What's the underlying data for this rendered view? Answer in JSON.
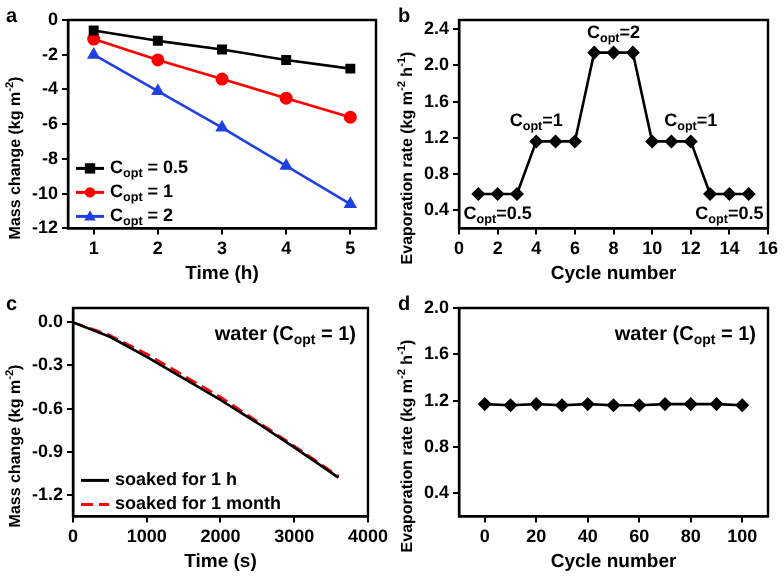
{
  "chart_data": [
    {
      "type": "line",
      "title": "a",
      "xlabel": "Time (h)",
      "ylabel": "Mass change (kg m$^{-2}$)",
      "x": [
        1,
        2,
        3,
        4,
        5
      ],
      "xlim": [
        0.6,
        5.4
      ],
      "xticks": [
        1,
        2,
        3,
        4,
        5
      ],
      "ylim": [
        -12,
        0
      ],
      "yticks": [
        -12,
        -10,
        -8,
        -6,
        -4,
        -2,
        0
      ],
      "grid": false,
      "legend": "bottom left",
      "series": [
        {
          "name": "C$_{opt}$ = 0.5",
          "color": "#000000",
          "marker": "square",
          "values": [
            -0.6,
            -1.2,
            -1.7,
            -2.3,
            -2.8
          ]
        },
        {
          "name": "C$_{opt}$ = 1",
          "color": "#ff0000",
          "marker": "circle",
          "values": [
            -1.1,
            -2.3,
            -3.4,
            -4.5,
            -5.6
          ]
        },
        {
          "name": "C$_{opt}$ = 2",
          "color": "#2040e0",
          "marker": "triangle",
          "values": [
            -2.0,
            -4.1,
            -6.2,
            -8.4,
            -10.6
          ]
        }
      ]
    },
    {
      "type": "line",
      "title": "b",
      "xlabel": "Cycle number",
      "ylabel": "Evaporation rate (kg m$^{-2}$ h$^{-1}$)",
      "x": [
        1,
        2,
        3,
        4,
        5,
        6,
        7,
        8,
        9,
        10,
        11,
        12,
        13,
        14,
        15
      ],
      "xlim": [
        0,
        16
      ],
      "xticks": [
        0,
        2,
        4,
        6,
        8,
        10,
        12,
        14,
        16
      ],
      "ylim": [
        0.2,
        2.5
      ],
      "yticks": [
        0.4,
        0.8,
        1.2,
        1.6,
        {
          "value": 2,
          "label": "2.0"
        },
        2.4
      ],
      "grid": false,
      "marker": "diamond",
      "color": "#000000",
      "values": [
        0.58,
        0.58,
        0.58,
        1.16,
        1.16,
        1.16,
        2.14,
        2.14,
        2.14,
        1.16,
        1.16,
        1.16,
        0.58,
        0.58,
        0.58
      ],
      "annotations": [
        {
          "text": "C$_{opt}$=0.5",
          "x": 2,
          "y": 0.58
        },
        {
          "text": "C$_{opt}$=1",
          "x": 4,
          "y": 1.16
        },
        {
          "text": "C$_{opt}$=2",
          "x": 8,
          "y": 2.14
        },
        {
          "text": "C$_{opt}$=1",
          "x": 12,
          "y": 1.16
        },
        {
          "text": "C$_{opt}$=0.5",
          "x": 14,
          "y": 0.58
        }
      ]
    },
    {
      "type": "line",
      "title": "c",
      "xlabel": "Time (s)",
      "ylabel": "Mass change (kg m$^{-2}$)",
      "xlim": [
        0,
        4000
      ],
      "xticks": [
        0,
        1000,
        2000,
        3000,
        4000
      ],
      "ylim": [
        -1.35,
        0.1
      ],
      "yticks": [
        {
          "value": -1.2,
          "label": "-1.2"
        },
        {
          "value": -0.9,
          "label": "-0.9"
        },
        {
          "value": -0.6,
          "label": "-0.6"
        },
        {
          "value": -0.3,
          "label": "-0.3"
        },
        {
          "value": 0,
          "label": "0.0"
        }
      ],
      "grid": false,
      "legend": "bottom left",
      "marker": "none",
      "annotations": [
        "water (C$_{opt}$ = 1)"
      ],
      "series": [
        {
          "name": "soaked for 1 h",
          "color": "#000000",
          "line_style": "solid",
          "x": [
            0,
            500,
            1000,
            1500,
            2000,
            2500,
            3000,
            3600
          ],
          "values": [
            0,
            -0.1,
            -0.24,
            -0.39,
            -0.54,
            -0.7,
            -0.87,
            -1.08
          ]
        },
        {
          "name": "soaked for 1 month",
          "color": "#ff0000",
          "line_style": "dashed",
          "x": [
            0,
            500,
            1000,
            1500,
            2000,
            2500,
            3000,
            3600
          ],
          "values": [
            0,
            -0.09,
            -0.22,
            -0.37,
            -0.52,
            -0.69,
            -0.86,
            -1.07
          ]
        }
      ]
    },
    {
      "type": "line",
      "title": "d",
      "xlabel": "Cycle number",
      "ylabel": "Evaporation rate (kg m$^{-2}$ h$^{-1}$)",
      "x": [
        0,
        10,
        20,
        30,
        40,
        50,
        60,
        70,
        80,
        90,
        100
      ],
      "xlim": [
        -10,
        110
      ],
      "xticks": [
        0,
        20,
        40,
        60,
        80,
        100
      ],
      "ylim": [
        0.2,
        2
      ],
      "yticks": [
        0.4,
        0.8,
        1.2,
        1.6,
        {
          "value": 2,
          "label": "2.0"
        }
      ],
      "grid": false,
      "marker": "diamond",
      "color": "#000000",
      "annotations": [
        "water (C$_{opt}$ = 1)"
      ],
      "values": [
        1.17,
        1.16,
        1.17,
        1.16,
        1.17,
        1.16,
        1.16,
        1.17,
        1.17,
        1.17,
        1.16
      ]
    }
  ]
}
